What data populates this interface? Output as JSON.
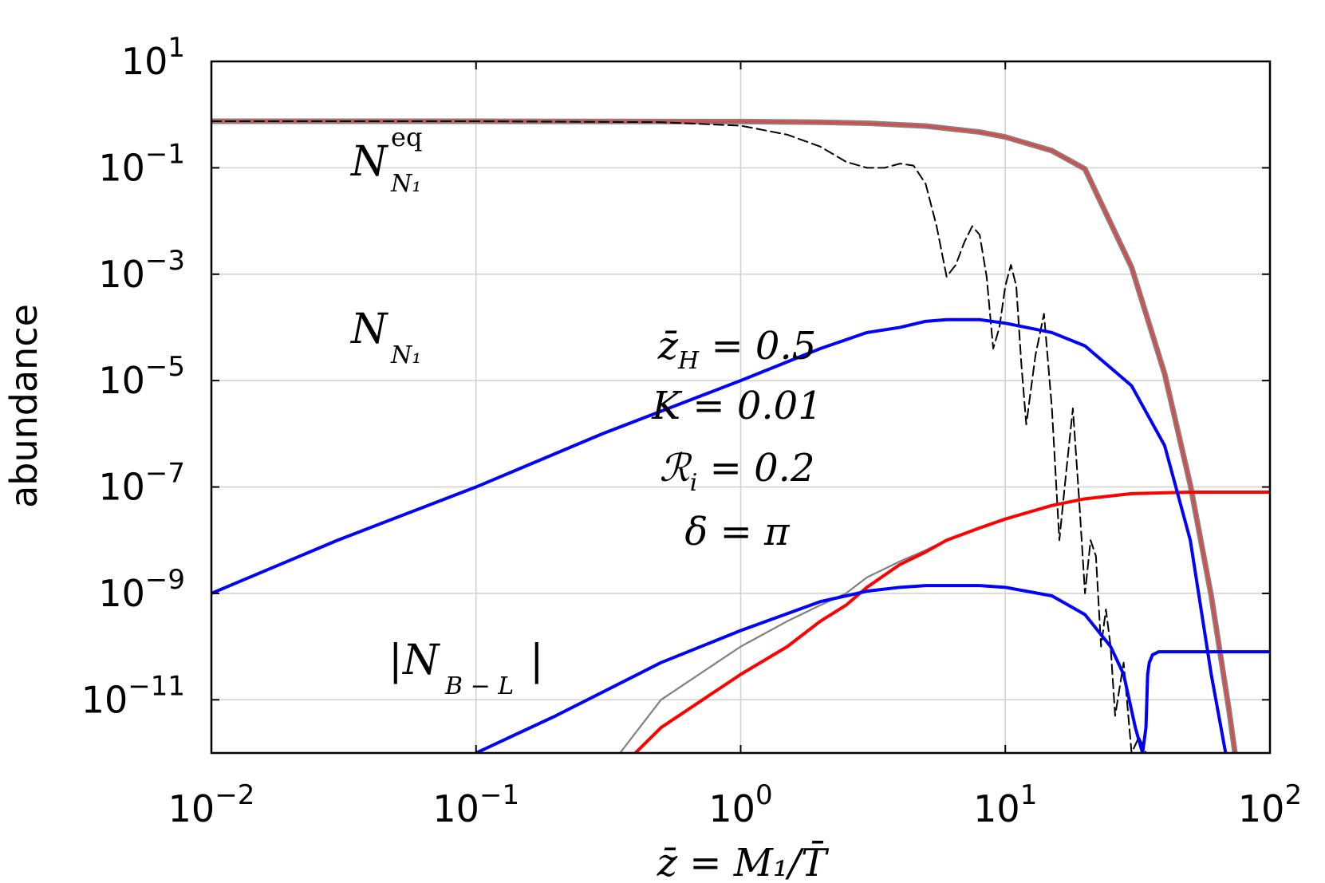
{
  "chart_data": {
    "type": "line",
    "xscale": "log",
    "yscale": "log",
    "xlim": [
      0.01,
      100
    ],
    "ylim": [
      1e-12,
      10
    ],
    "grid": true,
    "legend": "none",
    "xlabel": "z̄ = M₁/T̄",
    "ylabel": "abundance",
    "x_ticks": [
      {
        "value": 0.01,
        "base": "10",
        "exp": "−2"
      },
      {
        "value": 0.1,
        "base": "10",
        "exp": "−1"
      },
      {
        "value": 1,
        "base": "10",
        "exp": "0"
      },
      {
        "value": 10,
        "base": "10",
        "exp": "1"
      },
      {
        "value": 100,
        "base": "10",
        "exp": "2"
      }
    ],
    "y_ticks": [
      {
        "value": 10,
        "base": "10",
        "exp": "1"
      },
      {
        "value": 0.1,
        "base": "10",
        "exp": "−1"
      },
      {
        "value": 0.001,
        "base": "10",
        "exp": "−3"
      },
      {
        "value": 1e-05,
        "base": "10",
        "exp": "−5"
      },
      {
        "value": 1e-07,
        "base": "10",
        "exp": "−7"
      },
      {
        "value": 1e-09,
        "base": "10",
        "exp": "−9"
      },
      {
        "value": 1e-11,
        "base": "10",
        "exp": "−11"
      }
    ],
    "series": [
      {
        "key": "NN1eq",
        "color": "#8c7f7f",
        "style": "solid",
        "x": [
          0.01,
          0.1,
          1,
          2,
          3,
          5,
          8,
          10,
          15,
          20,
          30,
          40,
          50,
          60,
          70,
          75
        ],
        "y": [
          0.75,
          0.75,
          0.74,
          0.72,
          0.69,
          0.61,
          0.47,
          0.38,
          0.21,
          0.095,
          0.00135,
          1.34e-05,
          1.1e-07,
          9e-10,
          6.5e-12,
          5.5e-13
        ]
      },
      {
        "key": "NN1eq_overlay",
        "color": "#d94a4a",
        "style": "solid",
        "x": [
          0.01,
          0.1,
          1,
          2,
          3,
          5,
          8,
          10,
          15,
          20,
          30,
          40,
          50,
          60,
          70,
          75
        ],
        "y": [
          0.75,
          0.75,
          0.74,
          0.72,
          0.69,
          0.61,
          0.47,
          0.38,
          0.21,
          0.095,
          0.00135,
          1.34e-05,
          1.1e-07,
          9e-10,
          6.5e-12,
          5.5e-13
        ]
      },
      {
        "key": "NN1_dashed",
        "color": "#000000",
        "style": "dashed",
        "x": [
          0.01,
          0.1,
          0.5,
          1,
          1.5,
          2,
          2.5,
          3,
          3.5,
          4,
          4.5,
          5,
          5.5,
          6,
          6.5,
          7,
          7.5,
          8,
          8.5,
          9,
          9.5,
          10,
          10.5,
          11,
          11.5,
          12,
          13,
          14,
          15,
          16,
          17,
          18,
          19,
          20,
          21,
          22,
          23,
          24,
          25,
          26,
          28,
          30,
          32,
          34,
          36
        ],
        "y": [
          0.75,
          0.75,
          0.72,
          0.62,
          0.42,
          0.25,
          0.13,
          0.1,
          0.1,
          0.12,
          0.11,
          0.05,
          0.008,
          0.0009,
          0.0015,
          0.004,
          0.008,
          0.0055,
          0.0009,
          4e-05,
          0.0001,
          0.0006,
          0.0015,
          0.0006,
          2e-05,
          1.5e-06,
          3e-05,
          0.00018,
          3e-06,
          1e-08,
          2e-07,
          3e-06,
          6e-08,
          1e-09,
          1e-08,
          5e-09,
          1e-10,
          5e-10,
          1e-10,
          5e-12,
          5e-11,
          1e-12,
          2e-12,
          1e-12,
          1e-12
        ]
      },
      {
        "key": "NN1",
        "color": "#0000ff",
        "style": "solid",
        "x": [
          0.01,
          0.03,
          0.1,
          0.3,
          1,
          2,
          3,
          4,
          5,
          6,
          7,
          8,
          10,
          15,
          20,
          30,
          40,
          50,
          60,
          68
        ],
        "y": [
          1e-09,
          1e-08,
          1e-07,
          1e-06,
          1e-05,
          4e-05,
          8e-05,
          0.0001,
          0.00013,
          0.00014,
          0.00014,
          0.00014,
          0.00012,
          8e-05,
          4.5e-05,
          8e-06,
          6e-07,
          1e-08,
          3e-11,
          1e-12
        ]
      },
      {
        "key": "NBL_gray",
        "color": "#808080",
        "style": "solid",
        "x": [
          0.35,
          0.5,
          1,
          1.5,
          2,
          2.5,
          3,
          4,
          5,
          6,
          8,
          10,
          15,
          20,
          30,
          50,
          100
        ],
        "y": [
          1e-12,
          1e-11,
          1e-10,
          3e-10,
          6e-10,
          1e-09,
          2e-09,
          4e-09,
          6.5e-09,
          1e-08,
          1.7e-08,
          2.5e-08,
          4.5e-08,
          6e-08,
          7.5e-08,
          8e-08,
          8e-08
        ]
      },
      {
        "key": "NBL_red",
        "color": "#ff0000",
        "style": "solid",
        "x": [
          0.4,
          0.5,
          1,
          1.5,
          2,
          2.5,
          3,
          4,
          5,
          6,
          8,
          10,
          15,
          20,
          30,
          50,
          100
        ],
        "y": [
          1e-12,
          3e-12,
          3e-11,
          1e-10,
          3e-10,
          6e-10,
          1.3e-09,
          3.5e-09,
          6e-09,
          1e-08,
          1.7e-08,
          2.5e-08,
          4.5e-08,
          6e-08,
          7.5e-08,
          8e-08,
          8e-08
        ]
      },
      {
        "key": "NBL_blue",
        "color": "#0000ff",
        "style": "solid",
        "x": [
          0.1,
          0.2,
          0.5,
          1,
          2,
          3,
          4,
          5,
          6,
          8,
          10,
          15,
          20,
          25,
          28,
          31,
          33,
          34,
          34.5,
          35,
          36,
          38,
          40,
          50,
          100
        ],
        "y": [
          1e-12,
          5e-12,
          5e-11,
          2e-10,
          7e-10,
          1.1e-09,
          1.3e-09,
          1.4e-09,
          1.4e-09,
          1.4e-09,
          1.3e-09,
          9e-10,
          4e-10,
          1e-10,
          3e-11,
          3e-12,
          1e-12,
          3e-12,
          3e-11,
          5e-11,
          7e-11,
          8e-11,
          8e-11,
          8e-11,
          8e-11
        ]
      }
    ],
    "annotations": [
      {
        "key": "label_eq",
        "text": "N",
        "sub": "N₁",
        "sup": "eq"
      },
      {
        "key": "label_NN1",
        "text": "N",
        "sub": "N₁",
        "sup": ""
      },
      {
        "key": "label_NBL",
        "text": "|N",
        "sub": "B − L",
        "sup": "",
        "suffix": "|"
      },
      {
        "key": "param_zH",
        "text": "z̄_H = 0.5"
      },
      {
        "key": "param_K",
        "text": "K = 0.01"
      },
      {
        "key": "param_R",
        "text": "ℛ_i = 0.2"
      },
      {
        "key": "param_delta",
        "text": "δ = π"
      }
    ]
  }
}
